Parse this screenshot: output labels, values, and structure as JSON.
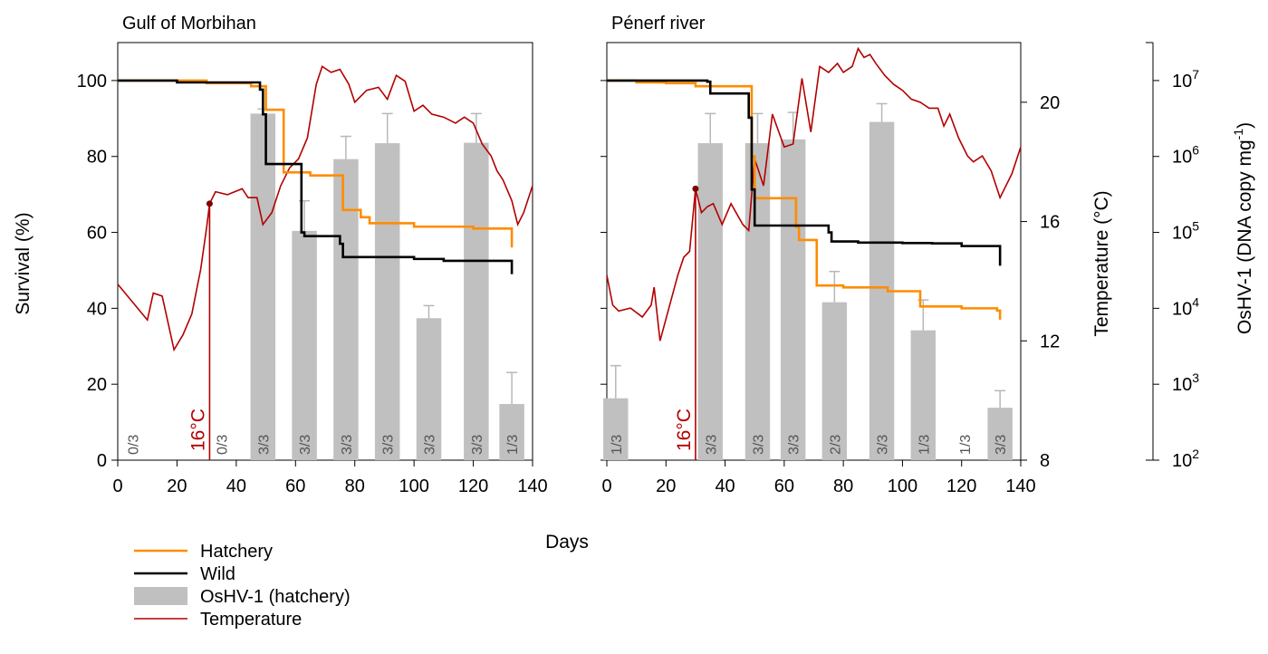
{
  "labels": {
    "xlabel": "Days",
    "ylabel_left": "Survival (%)",
    "ylabel_temp": "Temperature (°C)",
    "ylabel_osh_main": "OsHV-1 (DNA copy mg",
    "ylabel_osh_sup": "-1",
    "ylabel_osh_end": ")",
    "marker_16": "16°C"
  },
  "legend": [
    {
      "label": "Hatchery",
      "color": "#ff8c00",
      "kind": "line"
    },
    {
      "label": "Wild",
      "color": "#000000",
      "kind": "line"
    },
    {
      "label": "OsHV-1 (hatchery)",
      "color": "#c0c0c0",
      "kind": "box"
    },
    {
      "label": "Temperature",
      "color": "#b20000",
      "kind": "thin-line"
    }
  ],
  "colors": {
    "hatchery": "#ff8c00",
    "wild": "#000000",
    "bars": "#c0c0c0",
    "errorbars": "#b8b8b8",
    "temperature": "#b20000",
    "ratio_text": "#555555"
  },
  "axes": {
    "xlim": [
      0,
      140
    ],
    "xticks": [
      0,
      20,
      40,
      60,
      80,
      100,
      120,
      140
    ],
    "survival_ylim": [
      0,
      110
    ],
    "survival_ticks": [
      0,
      20,
      40,
      60,
      80,
      100
    ],
    "temp_ylim": [
      8,
      22
    ],
    "temp_ticks": [
      8,
      12,
      16,
      20
    ],
    "oshv_log_ylim": [
      2,
      7.5
    ],
    "oshv_ticks": [
      {
        "exp": 2,
        "label": "10",
        "sup": "2"
      },
      {
        "exp": 3,
        "label": "10",
        "sup": "3"
      },
      {
        "exp": 4,
        "label": "10",
        "sup": "4"
      },
      {
        "exp": 5,
        "label": "10",
        "sup": "5"
      },
      {
        "exp": 6,
        "label": "10",
        "sup": "6"
      },
      {
        "exp": 7,
        "label": "10",
        "sup": "7"
      }
    ]
  },
  "chart_data": [
    {
      "type": "line",
      "title": "Gulf of Morbihan",
      "temp_marker": {
        "day": 31,
        "temp": 16.6,
        "label": "16°C"
      },
      "series": [
        {
          "name": "Hatchery",
          "x": [
            0,
            20,
            30,
            45,
            48,
            50,
            55,
            56,
            63,
            65,
            75,
            76,
            82,
            85,
            95,
            100,
            120,
            125,
            132,
            133
          ],
          "y": [
            100,
            100,
            99.3,
            98.5,
            98.5,
            92.3,
            92.3,
            75.8,
            75.8,
            75,
            75,
            65.9,
            64,
            62.4,
            62.4,
            61.5,
            61,
            61,
            61,
            56
          ]
        },
        {
          "name": "Wild",
          "x": [
            0,
            20,
            45,
            48,
            49,
            50,
            61,
            62,
            63,
            70,
            75,
            76,
            80,
            100,
            110,
            125,
            132,
            133
          ],
          "y": [
            100,
            99.5,
            99.5,
            97.6,
            91.1,
            78,
            78,
            60,
            59,
            59,
            57,
            53.5,
            53.5,
            53,
            52.5,
            52.5,
            52.5,
            49
          ]
        },
        {
          "name": "Temperature",
          "x": [
            0,
            5,
            10,
            12,
            15,
            19,
            22,
            25,
            28,
            30,
            31,
            33,
            37,
            42,
            44,
            47,
            49,
            52,
            55,
            58,
            61,
            64,
            67,
            69,
            72,
            75,
            78,
            80,
            84,
            88,
            91,
            94,
            97,
            100,
            103,
            106,
            110,
            114,
            117,
            120,
            123,
            126,
            128,
            130,
            133,
            135,
            137,
            140
          ],
          "y": [
            13.9,
            13.3,
            12.7,
            13.6,
            13.5,
            11.7,
            12.2,
            12.9,
            14.4,
            15.8,
            16.6,
            17,
            16.9,
            17.1,
            16.8,
            16.8,
            15.9,
            16.3,
            17.2,
            17.8,
            18.1,
            18.8,
            20.6,
            21.2,
            21.0,
            21.1,
            20.6,
            20.0,
            20.4,
            20.5,
            20.1,
            20.9,
            20.7,
            19.7,
            19.9,
            19.6,
            19.5,
            19.3,
            19.5,
            19.3,
            18.6,
            18.2,
            17.7,
            17.4,
            16.7,
            15.9,
            16.3,
            17.2
          ]
        }
      ],
      "bars": [
        {
          "x": 49,
          "value": 91.3,
          "err": 92.5,
          "ratio": "3/3"
        },
        {
          "x": 63,
          "value": 60.4,
          "err": 68.3,
          "ratio": "3/3"
        },
        {
          "x": 77,
          "value": 79.3,
          "err": 85.3,
          "ratio": "3/3"
        },
        {
          "x": 91,
          "value": 83.5,
          "err": 91.3,
          "ratio": "3/3"
        },
        {
          "x": 105,
          "value": 37.4,
          "err": 40.7,
          "ratio": "3/3"
        },
        {
          "x": 121,
          "value": 83.6,
          "err": 91.3,
          "ratio": "3/3"
        },
        {
          "x": 133,
          "value": 14.8,
          "err": 23.1,
          "ratio": "1/3"
        }
      ],
      "empty_ratios": [
        {
          "x": 5,
          "ratio": "0/3"
        },
        {
          "x": 35,
          "ratio": "0/3"
        }
      ]
    },
    {
      "type": "line",
      "title": "Pénerf river",
      "temp_marker": {
        "day": 30,
        "temp": 17.1,
        "label": "16°C"
      },
      "series": [
        {
          "name": "Hatchery",
          "x": [
            0,
            10,
            20,
            30,
            35,
            48,
            49,
            50,
            63,
            64,
            65,
            70,
            71,
            80,
            95,
            100,
            105,
            106,
            120,
            132,
            133
          ],
          "y": [
            100,
            99.5,
            99.3,
            98.5,
            98.5,
            98.5,
            80,
            69,
            69,
            61.5,
            58,
            58,
            46,
            45.5,
            44.5,
            44.5,
            44.5,
            40.5,
            40,
            39.4,
            37
          ]
        },
        {
          "name": "Wild",
          "x": [
            0,
            20,
            34,
            35,
            47,
            48,
            49,
            50,
            63,
            75,
            76,
            85,
            100,
            110,
            120,
            132,
            133
          ],
          "y": [
            100,
            100,
            99.7,
            96.6,
            96.6,
            90.2,
            71.3,
            61.8,
            61.8,
            60,
            57.6,
            57.3,
            57.2,
            57.1,
            56.4,
            56.4,
            51.2
          ]
        },
        {
          "name": "Temperature",
          "x": [
            0,
            2,
            4,
            8,
            12,
            15,
            16,
            18,
            21,
            24,
            26,
            28,
            30,
            32,
            34,
            36,
            39,
            42,
            46,
            48,
            50,
            53,
            56,
            60,
            63,
            66,
            69,
            72,
            75,
            78,
            80,
            83,
            85,
            87,
            89,
            91,
            94,
            97,
            100,
            103,
            106,
            109,
            112,
            114,
            116,
            119,
            122,
            124,
            127,
            130,
            133,
            135,
            137,
            140
          ],
          "y": [
            14.2,
            13.2,
            13.0,
            13.1,
            12.8,
            13.2,
            13.8,
            12.0,
            13.1,
            14.2,
            14.8,
            15.0,
            17.1,
            16.3,
            16.5,
            16.6,
            15.9,
            16.6,
            15.9,
            15.7,
            18.1,
            17.2,
            19.6,
            18.5,
            18.6,
            20.8,
            19.0,
            21.2,
            21.0,
            21.3,
            21.0,
            21.2,
            21.8,
            21.5,
            21.6,
            21.3,
            20.9,
            20.6,
            20.4,
            20.1,
            20.0,
            19.8,
            19.8,
            19.2,
            19.6,
            18.8,
            18.2,
            18.0,
            18.2,
            17.7,
            16.8,
            17.2,
            17.6,
            18.5
          ]
        }
      ],
      "bars": [
        {
          "x": 3,
          "value": 16.3,
          "err": 24.9,
          "ratio": "1/3"
        },
        {
          "x": 35,
          "value": 83.5,
          "err": 91.3,
          "ratio": "3/3"
        },
        {
          "x": 51,
          "value": 83.5,
          "err": 91.3,
          "ratio": "3/3"
        },
        {
          "x": 63,
          "value": 84.5,
          "err": 91.6,
          "ratio": "3/3"
        },
        {
          "x": 77,
          "value": 41.6,
          "err": 49.7,
          "ratio": "2/3"
        },
        {
          "x": 93,
          "value": 89.1,
          "err": 93.9,
          "ratio": "3/3"
        },
        {
          "x": 107,
          "value": 34.2,
          "err": 42.2,
          "ratio": "1/3"
        },
        {
          "x": 133,
          "value": 13.8,
          "err": 18.3,
          "ratio": "3/3"
        }
      ],
      "empty_ratios": [
        {
          "x": 121,
          "ratio": "1/3"
        }
      ]
    }
  ]
}
